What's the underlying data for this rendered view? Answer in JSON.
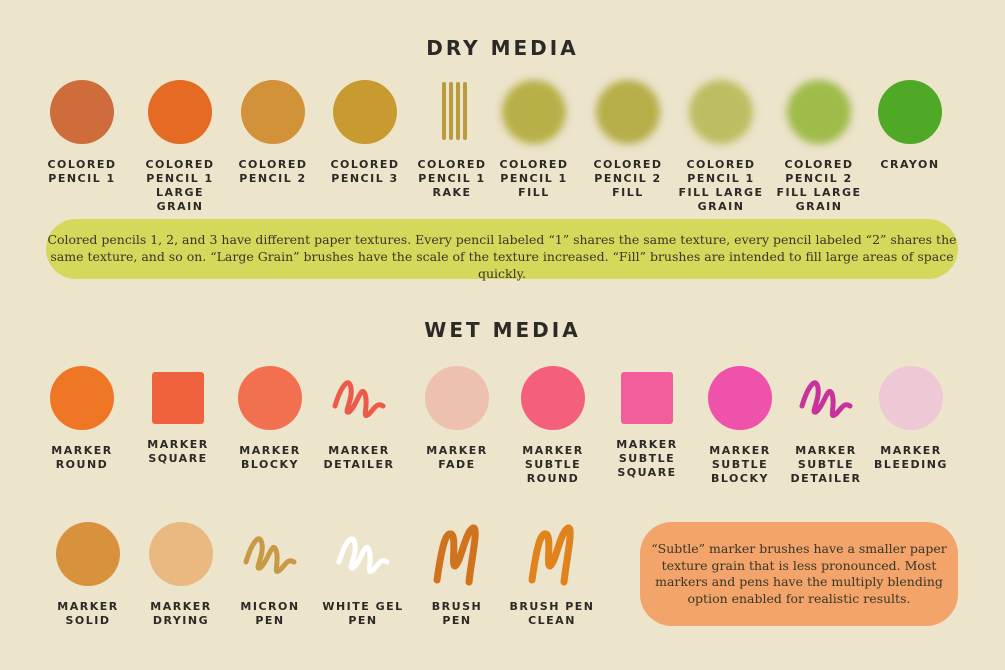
{
  "dry": {
    "title": "DRY MEDIA",
    "items": [
      {
        "label": "COLORED\nPENCIL 1",
        "shape": "circle",
        "color": "#cf6c3c"
      },
      {
        "label": "COLORED\nPENCIL 1\nLARGE\nGRAIN",
        "shape": "circle",
        "color": "#e56a24"
      },
      {
        "label": "COLORED\nPENCIL 2",
        "shape": "circle",
        "color": "#d2923a"
      },
      {
        "label": "COLORED\nPENCIL 3",
        "shape": "circle",
        "color": "#c99a30"
      },
      {
        "label": "COLORED\nPENCIL 1\nRAKE",
        "shape": "rake",
        "color": "#b99a3c"
      },
      {
        "label": "COLORED\nPENCIL 1\nFILL",
        "shape": "fill",
        "color": "#b7b048"
      },
      {
        "label": "COLORED\nPENCIL 2\nFILL",
        "shape": "fill",
        "color": "#b6ae48"
      },
      {
        "label": "COLORED\nPENCIL 1\nFILL LARGE\nGRAIN",
        "shape": "fill",
        "color": "#bdbd62"
      },
      {
        "label": "COLORED\nPENCIL 2\nFILL LARGE\nGRAIN",
        "shape": "fill",
        "color": "#9fbb4a"
      },
      {
        "label": "CRAYON",
        "shape": "circle",
        "color": "#4fa927"
      }
    ],
    "note": "Colored pencils 1, 2, and 3 have different paper textures. Every pencil labeled “1” shares the same texture, every pencil labeled “2” shares the same texture, and so on. “Large Grain” brushes have the scale of the texture increased. “Fill” brushes are intended to fill large areas of space quickly.",
    "note_color": "#d6d85c"
  },
  "wet": {
    "title": "WET MEDIA",
    "row1": [
      {
        "label": "MARKER\nROUND",
        "shape": "circle",
        "color": "#ee7624"
      },
      {
        "label": "MARKER\nSQUARE",
        "shape": "square",
        "color": "#f0623e"
      },
      {
        "label": "MARKER\nBLOCKY",
        "shape": "circle",
        "color": "#f2704f"
      },
      {
        "label": "MARKER\nDETAILER",
        "shape": "squiggle",
        "color": "#ee5a4a"
      },
      {
        "label": "MARKER\nFADE",
        "shape": "circle",
        "color": "#eec0ae"
      },
      {
        "label": "MARKER\nSUBTLE\nROUND",
        "shape": "circle",
        "color": "#f4607c"
      },
      {
        "label": "MARKER\nSUBTLE\nSQUARE",
        "shape": "square",
        "color": "#f25e9c"
      },
      {
        "label": "MARKER\nSUBTLE\nBLOCKY",
        "shape": "circle",
        "color": "#ee52aa"
      },
      {
        "label": "MARKER\nSUBTLE\nDETAILER",
        "shape": "squiggle",
        "color": "#c8329a"
      },
      {
        "label": "MARKER\nBLEEDING",
        "shape": "circle",
        "color": "#eec8d4"
      }
    ],
    "row2": [
      {
        "label": "MARKER\nSOLID",
        "shape": "circle",
        "color": "#d8923e"
      },
      {
        "label": "MARKER\nDRYING",
        "shape": "circle",
        "color": "#eab982"
      },
      {
        "label": "MICRON\nPEN",
        "shape": "squiggle",
        "color": "#c89a48"
      },
      {
        "label": "WHITE GEL\nPEN",
        "shape": "squiggle",
        "color": "#ffffff"
      },
      {
        "label": "BRUSH\nPEN",
        "shape": "brush",
        "color": "#d0731e"
      },
      {
        "label": "BRUSH PEN\nCLEAN",
        "shape": "brush",
        "color": "#e0831c"
      }
    ],
    "note": "“Subtle” marker brushes have a smaller paper texture grain that is less pronounced. Most markers and pens have the multiply blending option enabled for realistic results.",
    "note_color": "#f2a46a"
  }
}
